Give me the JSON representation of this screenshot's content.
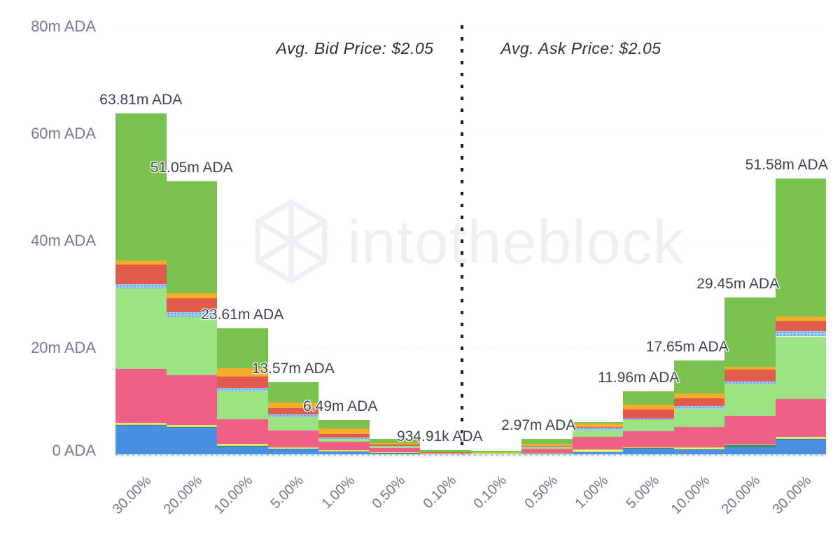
{
  "watermark": {
    "text": "intotheblock",
    "logo": "intotheblock-cube-logo",
    "color": "#edeff3"
  },
  "annotations": {
    "bid": "Avg. Bid Price: $2.05",
    "ask": "Avg. Ask Price: $2.05"
  },
  "chart_data": {
    "type": "bar",
    "stacked": true,
    "title": "",
    "xlabel": "",
    "ylabel": "",
    "unit": "ADA",
    "value_unit": "millions of ADA",
    "ylim": [
      0,
      80
    ],
    "grid": "horizontal-dotted",
    "legend": "none",
    "y_ticks": [
      {
        "value": 0,
        "label": "0 ADA"
      },
      {
        "value": 20,
        "label": "20m ADA"
      },
      {
        "value": 40,
        "label": "40m ADA"
      },
      {
        "value": 60,
        "label": "60m ADA"
      },
      {
        "value": 80,
        "label": "80m ADA"
      }
    ],
    "categories": [
      "30.00%",
      "20.00%",
      "10.00%",
      "5.00%",
      "1.00%",
      "0.50%",
      "0.10%",
      "0.10%",
      "0.50%",
      "1.00%",
      "5.00%",
      "10.00%",
      "20.00%",
      "30.00%"
    ],
    "sides": [
      "bid",
      "bid",
      "bid",
      "bid",
      "bid",
      "bid",
      "bid",
      "ask",
      "ask",
      "ask",
      "ask",
      "ask",
      "ask",
      "ask"
    ],
    "totals": [
      63.81,
      51.05,
      23.61,
      13.57,
      6.49,
      3.05,
      0.93,
      0.78,
      2.97,
      6.2,
      11.96,
      17.65,
      29.45,
      51.58
    ],
    "total_labels": [
      "63.81m ADA",
      "51.05m ADA",
      "23.61m ADA",
      "13.57m ADA",
      "6.49m ADA",
      null,
      "934.91k ADA",
      null,
      "2.97m ADA",
      null,
      "11.96m ADA",
      "17.65m ADA",
      "29.45m ADA",
      "51.58m ADA"
    ],
    "label_dx": [
      0,
      0,
      0,
      0,
      -5,
      0,
      -8,
      0,
      -12,
      0,
      -14,
      -17,
      -17,
      -20
    ],
    "series": [
      {
        "name": "blue",
        "color": "#4a90e0",
        "pattern": null,
        "values": [
          5.6,
          5.2,
          1.7,
          1.1,
          0.65,
          0.35,
          0.06,
          0.05,
          0.25,
          0.55,
          1.2,
          0.95,
          1.45,
          2.9
        ]
      },
      {
        "name": "teal",
        "color": "#2f8c78",
        "pattern": null,
        "values": [
          0.05,
          0.05,
          0.05,
          0.03,
          0.02,
          0.02,
          0.01,
          0.01,
          0.02,
          0.03,
          0.05,
          0.05,
          0.35,
          0.05
        ]
      },
      {
        "name": "lime",
        "color": "#d9de55",
        "pattern": "dotted-lime",
        "values": [
          0.4,
          0.4,
          0.3,
          0.25,
          0.2,
          0.1,
          0.02,
          0.02,
          0.08,
          0.5,
          0.15,
          0.5,
          0.2,
          0.45
        ]
      },
      {
        "name": "pink",
        "color": "#ef5f86",
        "pattern": null,
        "values": [
          10.0,
          9.2,
          4.6,
          3.2,
          1.6,
          0.8,
          0.28,
          0.08,
          0.8,
          2.3,
          3.05,
          3.7,
          5.3,
          7.0
        ]
      },
      {
        "name": "light-green",
        "color": "#9ce383",
        "pattern": null,
        "values": [
          15.1,
          10.9,
          5.2,
          2.5,
          0.6,
          0.3,
          0.06,
          0.26,
          0.35,
          1.2,
          2.05,
          3.4,
          5.9,
          11.76
        ]
      },
      {
        "name": "dotted-blue",
        "color": "#9cc8f1",
        "pattern": "dotted-blue",
        "values": [
          0.8,
          0.9,
          0.65,
          0.55,
          0.15,
          0.1,
          0.02,
          0.02,
          0.07,
          0.6,
          0.35,
          0.52,
          0.52,
          0.96
        ]
      },
      {
        "name": "red",
        "color": "#e05b4b",
        "pattern": null,
        "values": [
          3.55,
          2.6,
          2.2,
          1.1,
          0.75,
          0.35,
          0.08,
          0.04,
          0.12,
          0.1,
          1.6,
          1.5,
          2.2,
          1.87
        ]
      },
      {
        "name": "orange",
        "color": "#f3ad2b",
        "pattern": null,
        "values": [
          0.9,
          0.9,
          1.5,
          1.1,
          1.0,
          0.25,
          0.05,
          0.03,
          0.45,
          0.65,
          1.0,
          0.87,
          0.6,
          0.87
        ]
      },
      {
        "name": "green",
        "color": "#79c24e",
        "pattern": null,
        "values": [
          27.41,
          20.9,
          7.41,
          3.74,
          1.52,
          0.78,
          0.35,
          0.27,
          0.83,
          0.27,
          2.51,
          6.16,
          12.93,
          25.72
        ]
      }
    ]
  }
}
